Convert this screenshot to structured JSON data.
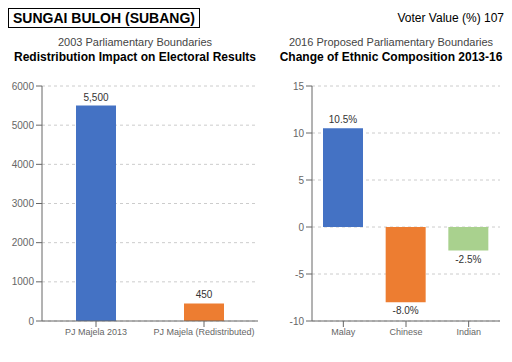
{
  "chart_data": [
    {
      "type": "bar",
      "title": "Redistribution Impact on Electoral Results",
      "subtitle": "2003 Parliamentary Boundaries",
      "annotations": [
        "SUNGAI BULOH (SUBANG)",
        "Voter Value (%) 107"
      ],
      "categories": [
        "PJ Majela 2013",
        "PJ Majela (Redistributed)"
      ],
      "values": [
        5500,
        450
      ],
      "value_labels": [
        "5,500",
        "450"
      ],
      "colors": [
        "#4472c4",
        "#ed7d31"
      ],
      "ylim": [
        0,
        6000
      ],
      "yticks": [
        0,
        1000,
        2000,
        3000,
        4000,
        5000,
        6000
      ],
      "grid": true,
      "data_labels": true
    },
    {
      "type": "bar",
      "title": "Change of Ethnic Composition 2013-16",
      "subtitle": "2016 Proposed Parliamentary Boundaries",
      "categories": [
        "Malay",
        "Chinese",
        "Indian"
      ],
      "values": [
        10.5,
        -8.0,
        -2.5
      ],
      "value_labels": [
        "10.5%",
        "-8.0%",
        "-2.5%"
      ],
      "colors": [
        "#4472c4",
        "#ed7d31",
        "#a9d18e"
      ],
      "ylim": [
        -10,
        15
      ],
      "yticks": [
        -10,
        -5,
        0,
        5,
        10,
        15
      ],
      "grid": true,
      "data_labels": true
    }
  ]
}
